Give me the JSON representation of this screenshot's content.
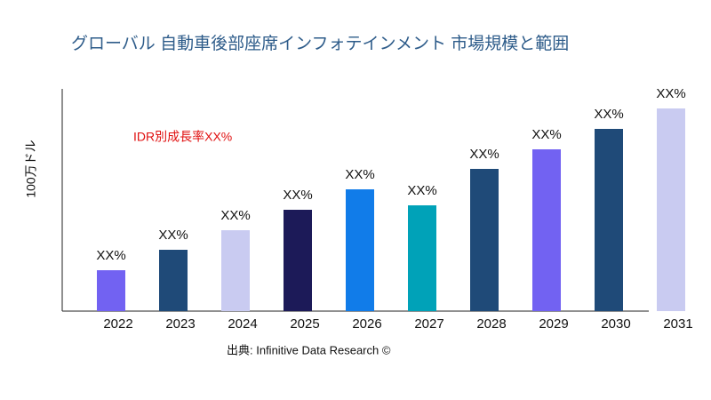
{
  "chart_data": {
    "type": "bar",
    "title": "グローバル 自動車後部座席インフォテインメント 市場規模と範囲",
    "y_label": "100万ドル",
    "annotation": "IDR別成長率XX%",
    "source": "出典: Infinitive Data Research ©",
    "categories": [
      "2022",
      "2023",
      "2024",
      "2025",
      "2026",
      "2027",
      "2028",
      "2029",
      "2030",
      "2031"
    ],
    "values": [
      46,
      69,
      91,
      114,
      137,
      119,
      160,
      182,
      205,
      228
    ],
    "value_labels": [
      "XX%",
      "XX%",
      "XX%",
      "XX%",
      "XX%",
      "XX%",
      "XX%",
      "XX%",
      "XX%",
      "XX%"
    ],
    "colors": [
      "#7262f2",
      "#1f4a78",
      "#c9cbf1",
      "#1c1a58",
      "#117ce9",
      "#00a2b8",
      "#1f4a78",
      "#7262f2",
      "#1f4a78",
      "#c9cbf1"
    ],
    "ylim": [
      0,
      250
    ]
  }
}
